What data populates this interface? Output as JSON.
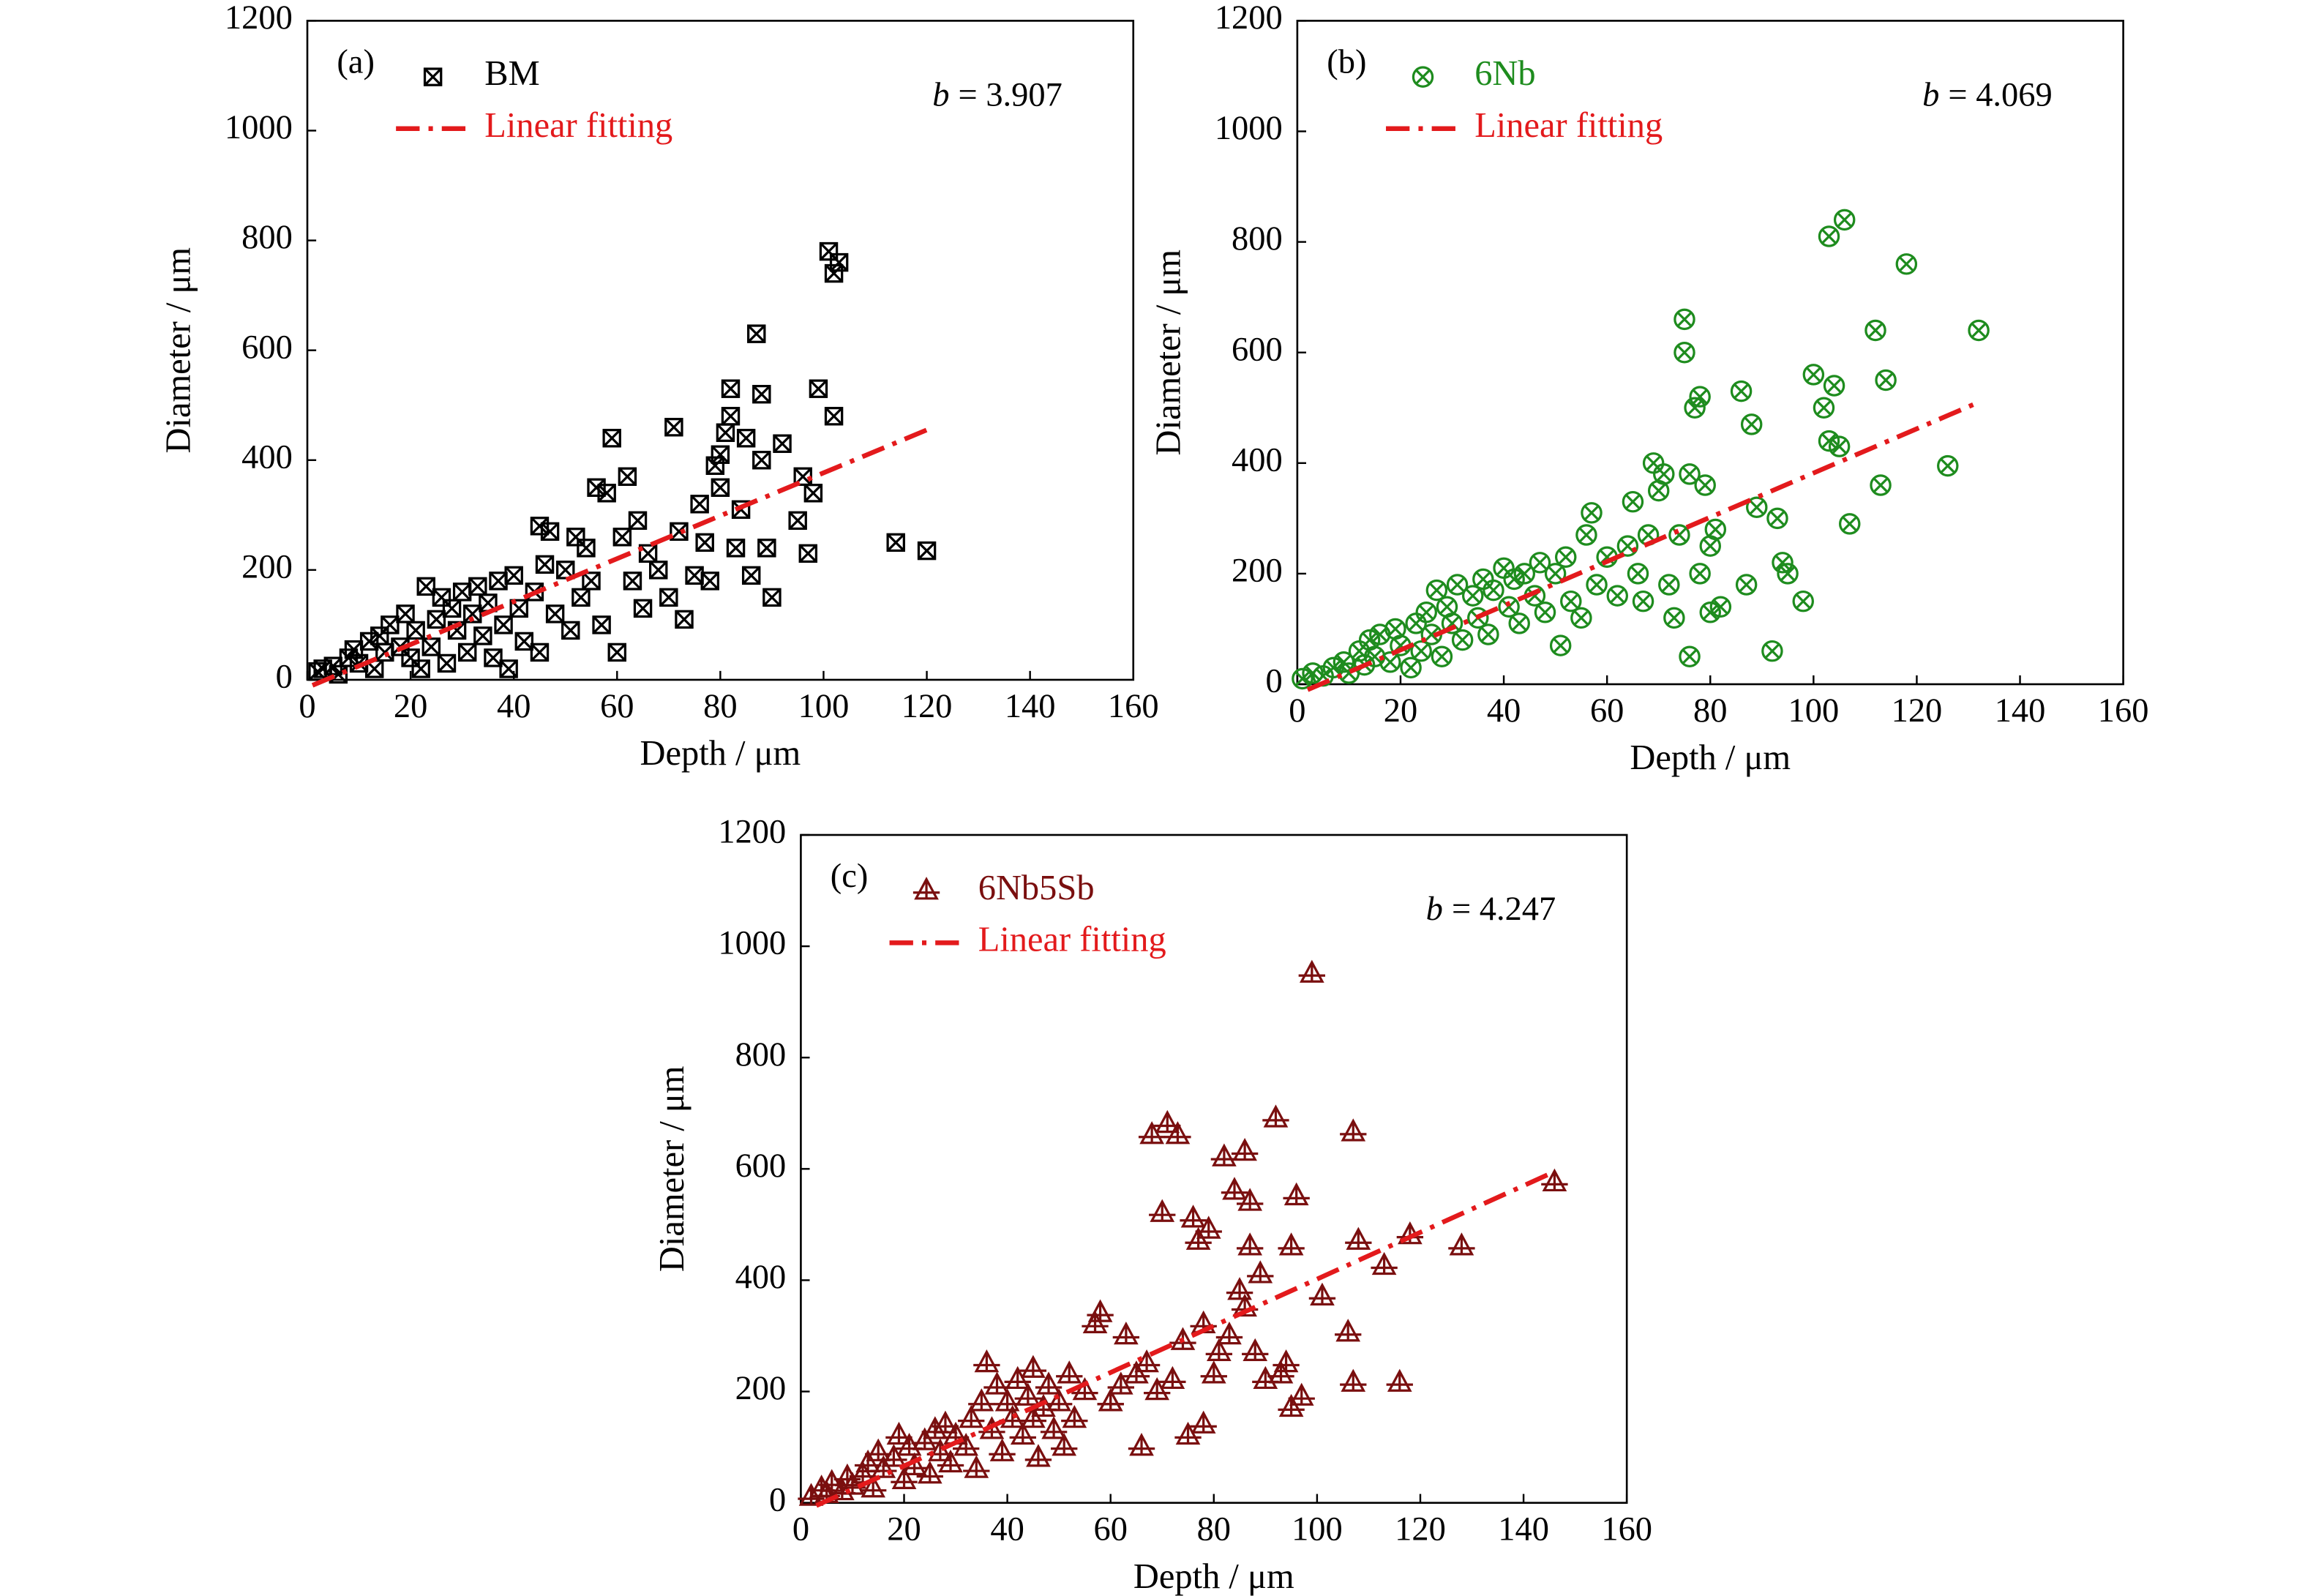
{
  "chart_data": [
    {
      "type": "scatter",
      "panel_label": "(a)",
      "fit_symbol": "b",
      "fit_value": "= 3.907",
      "xlabel": "Depth / μm",
      "ylabel": "Diameter / μm",
      "xlim": [
        0,
        160
      ],
      "ylim": [
        0,
        1200
      ],
      "xticks": [
        0,
        20,
        40,
        60,
        80,
        100,
        120,
        140,
        160
      ],
      "yticks": [
        0,
        200,
        400,
        600,
        800,
        1000,
        1200
      ],
      "series": [
        {
          "name": "BM",
          "color": "#000000",
          "marker": "boxed-x",
          "x": [
            2,
            3,
            5,
            6,
            8,
            9,
            10,
            12,
            13,
            14,
            15,
            16,
            18,
            19,
            20,
            21,
            22,
            23,
            24,
            25,
            26,
            27,
            28,
            29,
            30,
            31,
            32,
            33,
            34,
            35,
            36,
            37,
            38,
            39,
            40,
            41,
            42,
            44,
            45,
            45,
            46,
            47,
            48,
            50,
            51,
            52,
            53,
            54,
            55,
            56,
            57,
            58,
            59,
            60,
            61,
            62,
            63,
            64,
            65,
            66,
            68,
            70,
            71,
            72,
            73,
            75,
            76,
            77,
            78,
            79,
            80,
            80,
            81,
            82,
            82,
            83,
            84,
            85,
            86,
            87,
            88,
            88,
            89,
            90,
            92,
            95,
            96,
            97,
            98,
            99,
            101,
            102,
            103,
            102,
            114,
            120
          ],
          "values": [
            15,
            20,
            25,
            10,
            40,
            55,
            30,
            70,
            20,
            80,
            50,
            100,
            60,
            120,
            40,
            90,
            20,
            170,
            60,
            110,
            150,
            30,
            130,
            90,
            160,
            50,
            120,
            170,
            80,
            140,
            40,
            180,
            100,
            20,
            190,
            130,
            70,
            160,
            280,
            50,
            210,
            270,
            120,
            200,
            90,
            260,
            150,
            240,
            180,
            350,
            100,
            340,
            440,
            50,
            260,
            370,
            180,
            290,
            130,
            230,
            200,
            150,
            460,
            270,
            110,
            190,
            320,
            250,
            180,
            390,
            410,
            350,
            450,
            530,
            480,
            240,
            310,
            440,
            190,
            630,
            520,
            400,
            240,
            150,
            430,
            290,
            370,
            230,
            340,
            530,
            780,
            740,
            760,
            480,
            250,
            235
          ]
        },
        {
          "name": "Linear fitting",
          "color": "#e31a1c",
          "style": "dash-dot",
          "x": [
            1,
            120
          ],
          "values": [
            -10,
            455
          ]
        }
      ]
    },
    {
      "type": "scatter",
      "panel_label": "(b)",
      "fit_symbol": "b",
      "fit_value": "= 4.069",
      "xlabel": "Depth / μm",
      "ylabel": "Diameter / μm",
      "xlim": [
        0,
        160
      ],
      "ylim": [
        0,
        1200
      ],
      "xticks": [
        0,
        20,
        40,
        60,
        80,
        100,
        120,
        140,
        160
      ],
      "yticks": [
        0,
        200,
        400,
        600,
        800,
        1000,
        1200
      ],
      "series": [
        {
          "name": "6Nb",
          "color": "#1e8c1e",
          "marker": "circled-x",
          "x": [
            1,
            3,
            5,
            7,
            9,
            10,
            12,
            13,
            14,
            15,
            16,
            18,
            19,
            20,
            22,
            23,
            24,
            25,
            26,
            27,
            28,
            29,
            30,
            31,
            32,
            34,
            35,
            36,
            37,
            38,
            40,
            41,
            42,
            43,
            44,
            46,
            47,
            48,
            50,
            51,
            52,
            53,
            55,
            56,
            57,
            58,
            60,
            62,
            64,
            65,
            66,
            67,
            68,
            69,
            70,
            71,
            72,
            73,
            74,
            75,
            75,
            76,
            76,
            77,
            78,
            78,
            79,
            80,
            80,
            81,
            82,
            86,
            87,
            88,
            89,
            92,
            93,
            94,
            95,
            98,
            100,
            102,
            103,
            104,
            105,
            103,
            106,
            107,
            112,
            113,
            114,
            118,
            126,
            132
          ],
          "values": [
            10,
            20,
            15,
            30,
            40,
            20,
            60,
            35,
            80,
            50,
            90,
            40,
            100,
            70,
            30,
            110,
            60,
            130,
            90,
            170,
            50,
            140,
            110,
            180,
            80,
            160,
            120,
            190,
            90,
            170,
            210,
            140,
            190,
            110,
            200,
            160,
            220,
            130,
            200,
            70,
            230,
            150,
            120,
            270,
            310,
            180,
            230,
            160,
            250,
            330,
            200,
            150,
            270,
            400,
            350,
            380,
            180,
            120,
            270,
            600,
            660,
            380,
            50,
            500,
            520,
            200,
            360,
            130,
            250,
            280,
            140,
            530,
            180,
            470,
            320,
            60,
            300,
            220,
            200,
            150,
            560,
            500,
            440,
            540,
            430,
            810,
            840,
            290,
            640,
            360,
            550,
            760,
            395,
            640
          ]
        },
        {
          "name": "Linear fitting",
          "color": "#e31a1c",
          "style": "dash-dot",
          "x": [
            2,
            132
          ],
          "values": [
            -10,
            510
          ]
        }
      ]
    },
    {
      "type": "scatter",
      "panel_label": "(c)",
      "fit_symbol": "b",
      "fit_value": "= 4.247",
      "xlabel": "Depth / μm",
      "ylabel": "Diameter / μm",
      "xlim": [
        0,
        160
      ],
      "ylim": [
        0,
        1200
      ],
      "xticks": [
        0,
        20,
        40,
        60,
        80,
        100,
        120,
        140,
        160
      ],
      "yticks": [
        0,
        200,
        400,
        600,
        800,
        1000,
        1200
      ],
      "series": [
        {
          "name": "6Nb5Sb",
          "color": "#7a0f0f",
          "marker": "triangle",
          "x": [
            2,
            4,
            5,
            6,
            8,
            9,
            10,
            12,
            13,
            14,
            15,
            16,
            18,
            19,
            20,
            21,
            22,
            24,
            25,
            26,
            27,
            28,
            29,
            30,
            32,
            33,
            34,
            35,
            36,
            37,
            38,
            39,
            40,
            41,
            42,
            43,
            44,
            45,
            46,
            47,
            48,
            49,
            50,
            51,
            52,
            53,
            55,
            57,
            58,
            60,
            62,
            63,
            65,
            66,
            67,
            68,
            69,
            70,
            71,
            72,
            73,
            74,
            75,
            76,
            77,
            78,
            78,
            79,
            80,
            81,
            82,
            83,
            84,
            85,
            86,
            86,
            87,
            87,
            88,
            89,
            90,
            92,
            93,
            94,
            95,
            95,
            96,
            97,
            99,
            101,
            106,
            107,
            108,
            107,
            113,
            118,
            116,
            128,
            146,
            60,
            45
          ],
          "values": [
            10,
            25,
            15,
            35,
            20,
            45,
            30,
            50,
            70,
            25,
            90,
            60,
            80,
            120,
            40,
            100,
            65,
            110,
            50,
            130,
            90,
            140,
            70,
            120,
            100,
            150,
            60,
            180,
            250,
            130,
            210,
            90,
            180,
            150,
            220,
            120,
            190,
            240,
            80,
            170,
            210,
            130,
            180,
            100,
            230,
            150,
            200,
            320,
            340,
            180,
            210,
            300,
            230,
            100,
            250,
            660,
            200,
            520,
            680,
            220,
            660,
            290,
            120,
            510,
            470,
            140,
            320,
            490,
            230,
            270,
            620,
            300,
            560,
            380,
            350,
            630,
            540,
            460,
            270,
            410,
            220,
            690,
            230,
            250,
            460,
            170,
            550,
            190,
            950,
            370,
            305,
            665,
            470,
            215,
            425,
            480,
            215,
            460,
            575,
            180,
            150
          ]
        },
        {
          "name": "Linear fitting",
          "color": "#e31a1c",
          "style": "dash-dot",
          "x": [
            3,
            146
          ],
          "values": [
            -5,
            595
          ]
        }
      ]
    }
  ]
}
